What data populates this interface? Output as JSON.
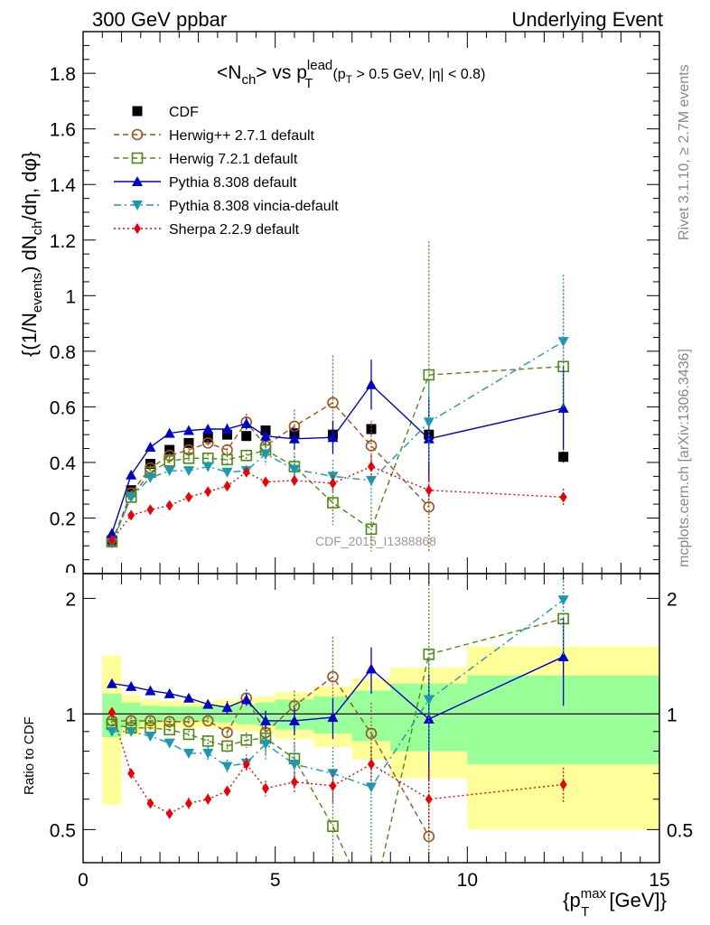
{
  "header": {
    "left": "300 GeV ppbar",
    "right": "Underlying Event"
  },
  "side_text": {
    "rivet": "Rivet 3.1.10, ≥ 2.7M events",
    "mcplots": "mcplots.cern.ch [arXiv:1306.3436]"
  },
  "watermark": "CDF_2015_I1388868",
  "title": {
    "main": "<N",
    "ch": "ch",
    "vs": "> vs p",
    "lead_sup": "lead",
    "T_sub": "T",
    "cuts": "(p",
    "cuts_T": "T",
    "cuts_rest": " > 0.5 GeV, |η| < 0.8)"
  },
  "axes": {
    "ylabel_main": "{(1/N",
    "ylabel_events": "events",
    "ylabel_mid": ") dN",
    "ylabel_ch": "ch",
    "ylabel_end": "/dη, dφ}",
    "ylabel_ratio": "Ratio to CDF",
    "xlabel_main": "{p",
    "xlabel_sup": "max",
    "xlabel_sub": "T",
    "xlabel_end": " [GeV]}"
  },
  "chart_data": [
    {
      "type": "line",
      "name": "main",
      "xlim": [
        0,
        15
      ],
      "ylim": [
        0,
        1.95
      ],
      "yticks": [
        "0.2",
        "0.4",
        "0.6",
        "0.8",
        "1",
        "1.2",
        "1.4",
        "1.6",
        "1.8"
      ],
      "ytick_values": [
        0.2,
        0.4,
        0.6,
        0.8,
        1.0,
        1.2,
        1.4,
        1.6,
        1.8
      ],
      "series": [
        {
          "name": "CDF",
          "color": "#000000",
          "marker": "square-filled",
          "line": "none",
          "x": [
            0.75,
            1.25,
            1.75,
            2.25,
            2.75,
            3.25,
            3.75,
            4.25,
            4.75,
            5.5,
            6.5,
            7.5,
            9.0,
            12.5
          ],
          "y": [
            0.12,
            0.3,
            0.395,
            0.445,
            0.47,
            0.49,
            0.5,
            0.495,
            0.515,
            0.505,
            0.5,
            0.52,
            0.5,
            0.42
          ],
          "err": [
            0.01,
            0.01,
            0.01,
            0.01,
            0.01,
            0.01,
            0.01,
            0.01,
            0.01,
            0.01,
            0.01,
            0.02,
            0.02,
            0.02
          ]
        },
        {
          "name": "Herwig++ 2.7.1 default",
          "color": "#a0521a",
          "marker": "circle-open",
          "line": "dashed",
          "x": [
            0.75,
            1.25,
            1.75,
            2.25,
            2.75,
            3.25,
            3.75,
            4.25,
            4.75,
            5.5,
            6.5,
            7.5,
            9.0
          ],
          "y": [
            0.115,
            0.29,
            0.38,
            0.425,
            0.445,
            0.47,
            0.445,
            0.545,
            0.46,
            0.53,
            0.615,
            0.46,
            0.24
          ],
          "err": [
            0.01,
            0.01,
            0.01,
            0.01,
            0.01,
            0.01,
            0.02,
            0.03,
            0.04,
            0.06,
            0.17,
            0.09,
            0.16
          ]
        },
        {
          "name": "Herwig 7.2.1 default",
          "color": "#4f8a10",
          "marker": "square-open",
          "line": "dashed",
          "x": [
            0.75,
            1.25,
            1.75,
            2.25,
            2.75,
            3.25,
            3.75,
            4.25,
            4.75,
            5.5,
            6.5,
            7.5,
            9.0,
            12.5
          ],
          "y": [
            0.115,
            0.275,
            0.365,
            0.405,
            0.415,
            0.415,
            0.41,
            0.425,
            0.445,
            0.385,
            0.255,
            0.16,
            0.715,
            0.745
          ],
          "err": [
            0.01,
            0.01,
            0.01,
            0.01,
            0.01,
            0.015,
            0.015,
            0.02,
            0.04,
            0.05,
            0.08,
            0.08,
            0.48,
            0.29
          ]
        },
        {
          "name": "Pythia 8.308 default",
          "color": "#0000cc",
          "marker": "triangle-up",
          "line": "solid",
          "x": [
            0.75,
            1.25,
            1.75,
            2.25,
            2.75,
            3.25,
            3.75,
            4.25,
            4.75,
            5.5,
            6.5,
            7.5,
            9.0,
            12.5
          ],
          "y": [
            0.145,
            0.355,
            0.455,
            0.505,
            0.515,
            0.52,
            0.52,
            0.54,
            0.495,
            0.485,
            0.49,
            0.68,
            0.485,
            0.595
          ],
          "err": [
            0.01,
            0.01,
            0.01,
            0.01,
            0.01,
            0.01,
            0.02,
            0.02,
            0.03,
            0.04,
            0.06,
            0.09,
            0.15,
            0.15
          ]
        },
        {
          "name": "Pythia 8.308 vincia-default",
          "color": "#1a9ab0",
          "marker": "triangle-down",
          "line": "dashdot",
          "x": [
            0.75,
            1.25,
            1.75,
            2.25,
            2.75,
            3.25,
            3.75,
            4.25,
            4.75,
            5.5,
            6.5,
            7.5,
            9.0,
            12.5
          ],
          "y": [
            0.11,
            0.275,
            0.345,
            0.37,
            0.37,
            0.385,
            0.365,
            0.37,
            0.43,
            0.375,
            0.35,
            0.335,
            0.545,
            0.835
          ],
          "err": [
            0.01,
            0.01,
            0.01,
            0.01,
            0.01,
            0.015,
            0.015,
            0.02,
            0.04,
            0.05,
            0.06,
            0.09,
            0.15,
            0.24
          ]
        },
        {
          "name": "Sherpa 2.2.9 default",
          "color": "#ee0000",
          "marker": "diamond",
          "line": "dotted",
          "x": [
            0.75,
            1.25,
            1.75,
            2.25,
            2.75,
            3.25,
            3.75,
            4.25,
            4.75,
            5.5,
            6.5,
            7.5,
            9.0,
            12.5
          ],
          "y": [
            0.12,
            0.21,
            0.23,
            0.245,
            0.275,
            0.295,
            0.315,
            0.365,
            0.33,
            0.335,
            0.325,
            0.385,
            0.3,
            0.275
          ],
          "err": [
            0.005,
            0.005,
            0.005,
            0.005,
            0.01,
            0.01,
            0.01,
            0.015,
            0.015,
            0.02,
            0.03,
            0.04,
            0.06,
            0.03
          ]
        }
      ]
    },
    {
      "type": "line",
      "name": "ratio",
      "xlim": [
        0,
        15
      ],
      "ylim": [
        0.41,
        2.32
      ],
      "log_y": true,
      "yticks": [
        "0.5",
        "1",
        "2"
      ],
      "ytick_values": [
        0.5,
        1,
        2
      ],
      "xticks": [
        "0",
        "5",
        "10",
        "15"
      ],
      "xtick_values": [
        0,
        5,
        10,
        15
      ],
      "band_edges": [
        0.5,
        1.0,
        1.5,
        2.0,
        2.5,
        3.0,
        3.5,
        4.0,
        4.5,
        5.0,
        6.0,
        7.0,
        8.0,
        10.0,
        15.0
      ],
      "band_stat": [
        0.13,
        0.07,
        0.05,
        0.045,
        0.045,
        0.045,
        0.05,
        0.06,
        0.07,
        0.09,
        0.11,
        0.15,
        0.2,
        0.26
      ],
      "band_total": [
        0.42,
        0.12,
        0.09,
        0.08,
        0.08,
        0.08,
        0.09,
        0.1,
        0.11,
        0.14,
        0.18,
        0.24,
        0.32,
        0.5
      ],
      "series": [
        {
          "name": "Herwig++ 2.7.1 default",
          "x": [
            0.75,
            1.25,
            1.75,
            2.25,
            2.75,
            3.25,
            3.75,
            4.25,
            4.75,
            5.5,
            6.5,
            7.5,
            9.0
          ],
          "y": [
            0.96,
            0.96,
            0.96,
            0.955,
            0.955,
            0.96,
            0.895,
            1.1,
            0.895,
            1.05,
            1.25,
            0.89,
            0.48
          ],
          "err": [
            0.02,
            0.02,
            0.02,
            0.02,
            0.02,
            0.02,
            0.03,
            0.06,
            0.08,
            0.1,
            0.34,
            0.18,
            0.32
          ]
        },
        {
          "name": "Herwig 7.2.1 default",
          "x": [
            0.75,
            1.25,
            1.75,
            2.25,
            2.75,
            3.25,
            3.75,
            4.25,
            4.75,
            5.5,
            6.5,
            7.5,
            9.0,
            12.5
          ],
          "y": [
            0.94,
            0.92,
            0.92,
            0.91,
            0.885,
            0.85,
            0.825,
            0.855,
            0.865,
            0.765,
            0.51,
            0.31,
            1.43,
            1.77
          ],
          "err": [
            0.02,
            0.02,
            0.02,
            0.02,
            0.02,
            0.03,
            0.03,
            0.04,
            0.08,
            0.1,
            0.16,
            0.16,
            0.96,
            0.69
          ]
        },
        {
          "name": "Pythia 8.308 default",
          "x": [
            0.75,
            1.25,
            1.75,
            2.25,
            2.75,
            3.25,
            3.75,
            4.25,
            4.75,
            5.5,
            6.5,
            7.5,
            9.0,
            12.5
          ],
          "y": [
            1.2,
            1.18,
            1.15,
            1.13,
            1.1,
            1.06,
            1.04,
            1.09,
            0.96,
            0.96,
            0.98,
            1.31,
            0.97,
            1.41
          ],
          "err": [
            0.02,
            0.02,
            0.02,
            0.02,
            0.02,
            0.02,
            0.04,
            0.04,
            0.06,
            0.08,
            0.12,
            0.18,
            0.3,
            0.36
          ]
        },
        {
          "name": "Pythia 8.308 vincia-default",
          "x": [
            0.75,
            1.25,
            1.75,
            2.25,
            2.75,
            3.25,
            3.75,
            4.25,
            4.75,
            5.5,
            6.5,
            7.5,
            9.0,
            12.5
          ],
          "y": [
            0.9,
            0.9,
            0.875,
            0.84,
            0.79,
            0.79,
            0.73,
            0.745,
            0.835,
            0.74,
            0.7,
            0.645,
            1.09,
            1.98
          ],
          "err": [
            0.02,
            0.02,
            0.02,
            0.02,
            0.02,
            0.03,
            0.03,
            0.04,
            0.08,
            0.1,
            0.12,
            0.18,
            0.3,
            0.57
          ]
        },
        {
          "name": "Sherpa 2.2.9 default",
          "x": [
            0.75,
            1.25,
            1.75,
            2.25,
            2.75,
            3.25,
            3.75,
            4.25,
            4.75,
            5.5,
            6.5,
            7.5,
            9.0,
            12.5
          ],
          "y": [
            1.01,
            0.7,
            0.585,
            0.55,
            0.585,
            0.6,
            0.63,
            0.74,
            0.64,
            0.665,
            0.65,
            0.74,
            0.6,
            0.655
          ],
          "err": [
            0.02,
            0.01,
            0.01,
            0.01,
            0.02,
            0.02,
            0.02,
            0.03,
            0.03,
            0.04,
            0.06,
            0.08,
            0.12,
            0.07
          ]
        }
      ]
    }
  ]
}
